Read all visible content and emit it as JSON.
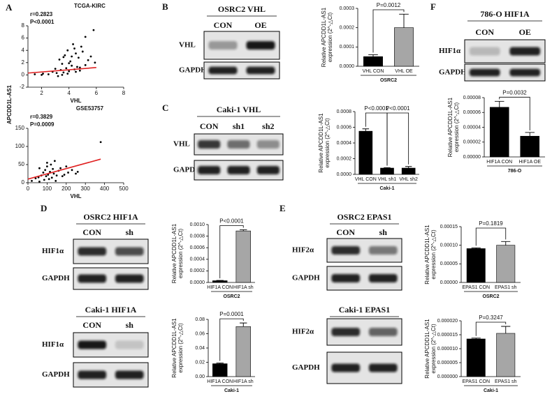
{
  "panel_labels": [
    "A",
    "B",
    "C",
    "F",
    "D",
    "E"
  ],
  "blots": [
    {
      "title": "OSRC2 VHL",
      "columns": [
        "CON",
        "OE"
      ],
      "rows": [
        "VHL",
        "GAPDH"
      ]
    },
    {
      "title": "Caki-1 VHL",
      "columns": [
        "CON",
        "sh1",
        "sh2"
      ],
      "rows": [
        "VHL",
        "GAPDH"
      ]
    },
    {
      "title": "786-O HIF1A",
      "columns": [
        "CON",
        "OE"
      ],
      "rows": [
        "HIF1α",
        "GAPDH"
      ]
    },
    {
      "title": "OSRC2 HIF1A",
      "columns": [
        "CON",
        "sh"
      ],
      "rows": [
        "HIF1α",
        "GAPDH"
      ]
    },
    {
      "title": "Caki-1 HIF1A",
      "columns": [
        "CON",
        "sh"
      ],
      "rows": [
        "HIF1α",
        "GAPDH"
      ]
    },
    {
      "title": "OSRC2 EPAS1",
      "columns": [
        "CON",
        "sh"
      ],
      "rows": [
        "HIF2α",
        "GAPDH"
      ]
    },
    {
      "title": "Caki-1 EPAS1",
      "columns": [
        "CON",
        "sh"
      ],
      "rows": [
        "HIF2α",
        "GAPDH"
      ]
    }
  ],
  "chart_data": [
    {
      "type": "scatter",
      "title": "TCGA-KIRC",
      "annotations": [
        "r=0.2823",
        "P<0.0001"
      ],
      "x_label": "VHL",
      "y_label": "APCDD1L-AS1",
      "x": [
        2.1,
        2.5,
        2.8,
        3.0,
        3.1,
        3.3,
        3.4,
        3.5,
        3.6,
        3.7,
        3.8,
        3.9,
        4.0,
        4.1,
        4.2,
        4.3,
        4.4,
        4.5,
        4.6,
        4.7,
        4.8,
        5.0,
        5.2,
        5.4,
        5.6,
        5.8,
        3.2,
        3.6,
        4.0,
        4.4,
        4.8,
        5.2,
        1.5,
        2.0,
        3.9,
        4.5,
        5.9,
        4.2,
        3.5,
        4.9
      ],
      "values": [
        0.2,
        0.1,
        0.5,
        1.0,
        0.3,
        2.5,
        0.8,
        1.8,
        0.4,
        3.2,
        1.1,
        4.0,
        0.6,
        2.2,
        1.5,
        5.0,
        0.9,
        3.5,
        1.3,
        2.8,
        0.7,
        3.8,
        1.6,
        2.4,
        3.0,
        7.3,
        -0.2,
        2.9,
        1.9,
        4.3,
        1.2,
        6.2,
        0.1,
        0.0,
        0.2,
        0.5,
        2.0,
        3.0,
        0.0,
        4.6
      ],
      "color": "#000000",
      "trend": {
        "x": [
          1,
          6
        ],
        "values": [
          0.3,
          1.2
        ],
        "color": "#e02020"
      },
      "xlim": [
        1,
        8
      ],
      "xticks": [
        2,
        4,
        6,
        8
      ],
      "ylim": [
        -2,
        8
      ],
      "yticks": [
        -2,
        0,
        2,
        4,
        6,
        8
      ]
    },
    {
      "type": "scatter",
      "title": "GSE53757",
      "annotations": [
        "r=0.3829",
        "P=0.0009"
      ],
      "x_label": "VHL",
      "x": [
        20,
        40,
        55,
        60,
        70,
        80,
        85,
        90,
        95,
        100,
        105,
        110,
        115,
        120,
        125,
        130,
        135,
        140,
        150,
        160,
        170,
        180,
        200,
        210,
        230,
        250,
        260,
        380,
        60,
        100,
        145,
        190
      ],
      "values": [
        5,
        12,
        15,
        3,
        20,
        28,
        8,
        35,
        18,
        45,
        22,
        10,
        30,
        50,
        14,
        38,
        25,
        60,
        20,
        33,
        40,
        18,
        45,
        28,
        35,
        25,
        30,
        112,
        40,
        55,
        5,
        22
      ],
      "color": "#000000",
      "trend": {
        "x": [
          0,
          380
        ],
        "values": [
          10,
          65
        ],
        "color": "#e02020"
      },
      "xlim": [
        0,
        500
      ],
      "xticks": [
        0,
        100,
        200,
        300,
        400,
        500
      ],
      "ylim": [
        0,
        150
      ],
      "yticks": [
        0,
        50,
        100,
        150
      ]
    },
    {
      "type": "bar",
      "y_label": [
        "Relative APCDD1L-AS1",
        "expression (2^-△Ct)"
      ],
      "categories": [
        "VHL CON",
        "VHL OE"
      ],
      "group": "OSRC2",
      "values": [
        5e-05,
        0.0002
      ],
      "errors": [
        1e-05,
        7e-05
      ],
      "colors": [
        "#000000",
        "#a6a6a6"
      ],
      "annotations": [
        "P=0.0012"
      ],
      "ylim": [
        0,
        0.0003
      ],
      "yticks": [
        {
          "value": 0,
          "label": "0.0000"
        },
        0.0001,
        0.0002,
        0.0003
      ]
    },
    {
      "type": "bar",
      "y_label": [
        "Relative APCDD1L-AS1",
        "expression (2^-△Ct)"
      ],
      "categories": [
        "VHL CON",
        "VHL sh1",
        "VHL sh2"
      ],
      "group": "Caki-1",
      "values": [
        0.00055,
        8e-05,
        8e-05
      ],
      "errors": [
        3e-05,
        5e-06,
        2e-05
      ],
      "colors": [
        "#000000",
        "#000000",
        "#000000"
      ],
      "annotations": [
        "P<0.0001",
        "P<0.0001"
      ],
      "ylim": [
        0,
        0.0008
      ],
      "yticks": [
        {
          "value": 0,
          "label": "0.0000"
        },
        0.0002,
        0.0004,
        0.0006,
        0.0008
      ]
    },
    {
      "type": "bar",
      "y_label": [
        "Relative APCDD1L-AS1",
        "expression (2^-△Ct)"
      ],
      "categories": [
        "HIF1A CON",
        "HIF1A OE"
      ],
      "group": "786-O",
      "values": [
        6.7e-05,
        2.8e-05
      ],
      "errors": [
        8e-06,
        5e-06
      ],
      "colors": [
        "#000000",
        "#000000"
      ],
      "annotations": [
        "P=0.0032"
      ],
      "ylim": [
        0,
        8e-05
      ],
      "yticks": [
        {
          "value": 0,
          "label": "0.00000"
        },
        2e-05,
        4e-05,
        6e-05,
        8e-05
      ]
    },
    {
      "type": "bar",
      "y_label": [
        "Relative APCDD1L-AS1",
        "expression (2^-△Ct)"
      ],
      "categories": [
        "HIF1A CON",
        "HIF1A sh"
      ],
      "group": "OSRC2",
      "values": [
        3e-05,
        0.00089
      ],
      "errors": [
        5e-06,
        2e-05
      ],
      "colors": [
        "#000000",
        "#a6a6a6"
      ],
      "annotations": [
        "P<0.0001"
      ],
      "ylim": [
        0,
        0.001
      ],
      "yticks": [
        {
          "value": 0,
          "label": "0.0000"
        },
        0.0002,
        0.0004,
        0.0006,
        0.0008,
        {
          "value": 0.001,
          "label": "0.0010"
        }
      ]
    },
    {
      "type": "bar",
      "y_label": [
        "Relative APCDD1L-AS1",
        "expression (2^-△Ct)"
      ],
      "categories": [
        "HIF1A CON",
        "HIF1A sh"
      ],
      "group": "Caki-1",
      "values": [
        0.018,
        0.07
      ],
      "errors": [
        0.001,
        0.005
      ],
      "colors": [
        "#000000",
        "#a6a6a6"
      ],
      "annotations": [
        "P=0.0001"
      ],
      "ylim": [
        0,
        0.08
      ],
      "yticks": [
        {
          "value": 0,
          "label": "0.00"
        },
        0.02,
        0.04,
        0.06,
        0.08
      ]
    },
    {
      "type": "bar",
      "y_label": [
        "Relative APCDD1L-AS1",
        "expression (2^-△Ct)"
      ],
      "categories": [
        "EPAS1 CON",
        "EPAS1 sh"
      ],
      "group": "OSRC2",
      "values": [
        9.1e-05,
        0.0001
      ],
      "errors": [
        2e-06,
        1e-05
      ],
      "colors": [
        "#000000",
        "#a6a6a6"
      ],
      "annotations": [
        "P=0.1819"
      ],
      "ylim": [
        0,
        0.00015
      ],
      "yticks": [
        {
          "value": 0,
          "label": "0.00000"
        },
        5e-05,
        {
          "value": 0.0001,
          "label": "0.00010"
        },
        0.00015
      ]
    },
    {
      "type": "bar",
      "y_label": [
        "Relative APCDD1L-AS1",
        "expression (2^-△Ct)"
      ],
      "categories": [
        "EPAS1 CON",
        "EPAS1 sh"
      ],
      "group": "Caki-1",
      "values": [
        1.35e-05,
        1.55e-05
      ],
      "errors": [
        3e-07,
        2.5e-06
      ],
      "colors": [
        "#000000",
        "#a6a6a6"
      ],
      "annotations": [
        "P=0.3247"
      ],
      "ylim": [
        0,
        2e-05
      ],
      "yticks": [
        {
          "value": 0,
          "label": "0.000000"
        },
        5e-06,
        {
          "value": 1e-05,
          "label": "0.000010"
        },
        1.5e-05,
        {
          "value": 2e-05,
          "label": "0.000020"
        }
      ]
    }
  ]
}
